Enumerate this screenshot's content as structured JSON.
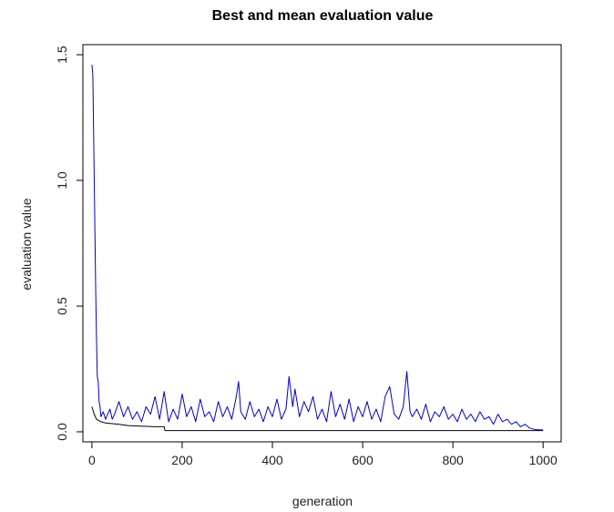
{
  "chart_data": {
    "type": "line",
    "title": "Best and mean evaluation value",
    "xlabel": "generation",
    "ylabel": "evaluation value",
    "xlim": [
      -20,
      1040
    ],
    "ylim": [
      -0.04,
      1.54
    ],
    "xticks": [
      0,
      200,
      400,
      600,
      800,
      1000
    ],
    "xtick_labels": [
      "0",
      "200",
      "400",
      "600",
      "800",
      "1000"
    ],
    "yticks": [
      0.0,
      0.5,
      1.0,
      1.5
    ],
    "ytick_labels": [
      "0.0",
      "0.5",
      "1.0",
      "1.5"
    ],
    "grid": false,
    "series": [
      {
        "role": "mean",
        "color": "#0000cc",
        "x": [
          0,
          2,
          4,
          6,
          8,
          10,
          12,
          14,
          16,
          18,
          20,
          25,
          30,
          35,
          40,
          45,
          50,
          60,
          70,
          80,
          90,
          100,
          110,
          120,
          130,
          140,
          150,
          160,
          170,
          180,
          190,
          200,
          210,
          220,
          230,
          240,
          250,
          260,
          270,
          280,
          290,
          300,
          310,
          320,
          325,
          330,
          340,
          350,
          360,
          370,
          380,
          390,
          400,
          410,
          420,
          430,
          437,
          445,
          450,
          460,
          470,
          480,
          490,
          500,
          510,
          520,
          530,
          540,
          550,
          560,
          570,
          580,
          590,
          600,
          610,
          620,
          630,
          640,
          650,
          660,
          670,
          680,
          690,
          698,
          705,
          710,
          720,
          730,
          740,
          750,
          760,
          770,
          780,
          790,
          800,
          810,
          820,
          830,
          840,
          850,
          860,
          870,
          880,
          890,
          900,
          910,
          920,
          930,
          940,
          950,
          960,
          970,
          980,
          990,
          1000
        ],
        "y": [
          1.46,
          1.42,
          1.15,
          0.88,
          0.6,
          0.38,
          0.22,
          0.2,
          0.12,
          0.1,
          0.06,
          0.08,
          0.05,
          0.07,
          0.09,
          0.05,
          0.07,
          0.12,
          0.06,
          0.1,
          0.05,
          0.08,
          0.04,
          0.1,
          0.07,
          0.14,
          0.05,
          0.16,
          0.04,
          0.09,
          0.05,
          0.15,
          0.06,
          0.1,
          0.04,
          0.13,
          0.06,
          0.08,
          0.04,
          0.12,
          0.06,
          0.1,
          0.05,
          0.14,
          0.2,
          0.08,
          0.05,
          0.12,
          0.06,
          0.09,
          0.04,
          0.1,
          0.06,
          0.13,
          0.05,
          0.09,
          0.22,
          0.1,
          0.17,
          0.06,
          0.12,
          0.08,
          0.14,
          0.05,
          0.09,
          0.04,
          0.16,
          0.06,
          0.11,
          0.05,
          0.13,
          0.04,
          0.1,
          0.06,
          0.12,
          0.05,
          0.09,
          0.04,
          0.14,
          0.18,
          0.07,
          0.05,
          0.1,
          0.24,
          0.08,
          0.06,
          0.09,
          0.05,
          0.11,
          0.04,
          0.08,
          0.06,
          0.1,
          0.05,
          0.07,
          0.04,
          0.09,
          0.05,
          0.07,
          0.04,
          0.08,
          0.05,
          0.06,
          0.03,
          0.07,
          0.04,
          0.05,
          0.03,
          0.04,
          0.02,
          0.03,
          0.015,
          0.01,
          0.008,
          0.007
        ]
      },
      {
        "role": "best",
        "color": "#000000",
        "x": [
          0,
          5,
          10,
          20,
          30,
          60,
          80,
          140,
          160,
          162,
          1000
        ],
        "y": [
          0.1,
          0.07,
          0.05,
          0.04,
          0.035,
          0.03,
          0.025,
          0.02,
          0.02,
          0.005,
          0.005
        ]
      }
    ]
  }
}
